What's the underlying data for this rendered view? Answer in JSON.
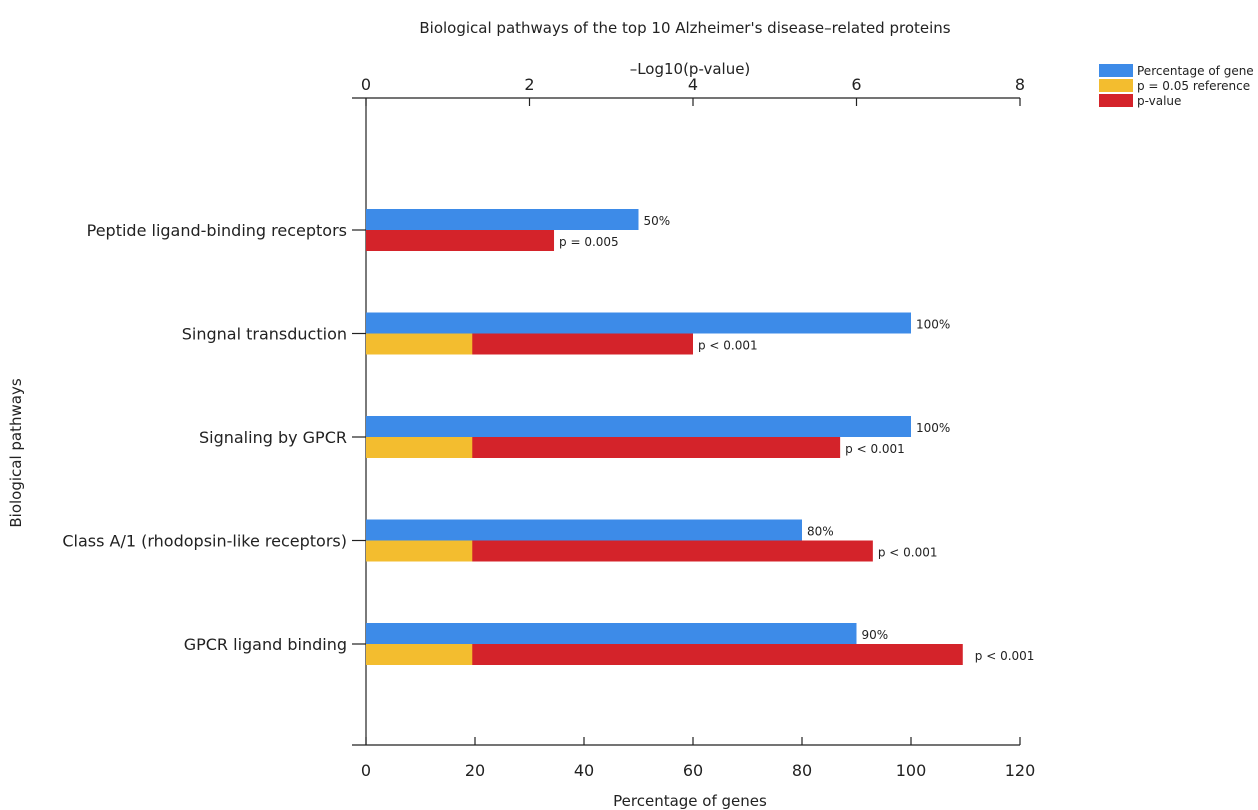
{
  "chart_data": {
    "type": "bar",
    "orientation": "horizontal",
    "title": "Biological pathways of the top 10 Alzheimer's disease–related proteins",
    "xlabel": "Percentage of genes",
    "x2label": "–Log10(p-value)",
    "ylabel": "Biological pathways",
    "xlim": [
      0,
      120
    ],
    "x2lim": [
      0,
      8
    ],
    "xticks": [
      0,
      20,
      40,
      60,
      80,
      100,
      120
    ],
    "x2ticks": [
      0,
      2,
      4,
      6,
      8
    ],
    "categories": [
      "Peptide ligand-binding receptors",
      "Singnal transduction",
      "Signaling by GPCR",
      "Class A/1 (rhodopsin-like receptors)",
      "GPCR ligand binding"
    ],
    "series": [
      {
        "name": "Percentage of gene",
        "axis": "bottom",
        "color": "#3d8be8",
        "values": [
          50,
          100,
          100,
          80,
          90
        ],
        "labels": [
          "50%",
          "100%",
          "100%",
          "80%",
          "90%"
        ]
      },
      {
        "name": "p = 0.05 reference",
        "axis": "top",
        "color": "#f3bd2f",
        "values": [
          null,
          1.3,
          1.3,
          1.3,
          1.3
        ]
      },
      {
        "name": "p-value",
        "axis": "top",
        "color": "#d4232a",
        "values": [
          2.3,
          4.0,
          5.8,
          6.2,
          7.3
        ],
        "labels": [
          "p = 0.005",
          "p < 0.001",
          "p < 0.001",
          "p < 0.001",
          "p < 0.001"
        ]
      }
    ],
    "legend_position": "top-right",
    "grid": false
  }
}
